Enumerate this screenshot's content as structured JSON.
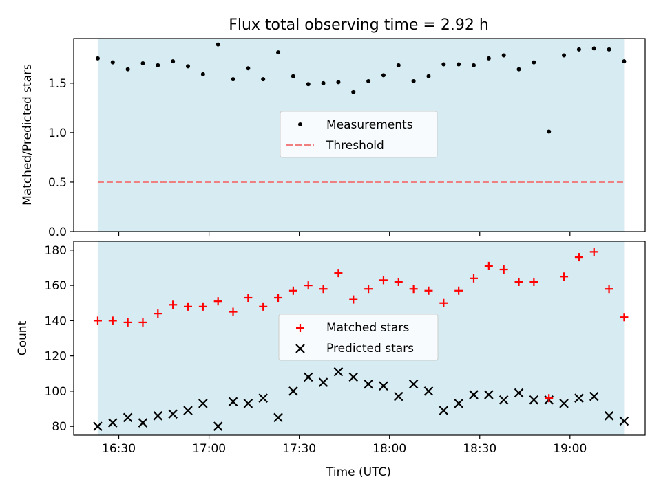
{
  "title": "Flux total observing time = 2.92 h",
  "colors": {
    "span": "#add8e6",
    "threshold": "#f08080",
    "measurements": "#000000",
    "matched": "#ff0000",
    "predicted": "#000000"
  },
  "chart_data": [
    {
      "type": "scatter",
      "panel": "top",
      "ylabel": "Matched/Predicted stars",
      "ylim": [
        0,
        1.95
      ],
      "yticks": [
        0.0,
        0.5,
        1.0,
        1.5
      ],
      "ytick_labels": [
        "0.0",
        "0.5",
        "1.0",
        "1.5"
      ],
      "observing_span": [
        "16:23",
        "19:18"
      ],
      "legend": {
        "position": "center",
        "entries": [
          "Measurements",
          "Threshold"
        ]
      },
      "threshold": 0.5,
      "series": [
        {
          "name": "Measurements",
          "marker": "dot",
          "x": [
            "16:23",
            "16:28",
            "16:33",
            "16:38",
            "16:43",
            "16:48",
            "16:53",
            "16:58",
            "17:03",
            "17:08",
            "17:13",
            "17:18",
            "17:23",
            "17:28",
            "17:33",
            "17:38",
            "17:43",
            "17:48",
            "17:53",
            "17:58",
            "18:03",
            "18:08",
            "18:13",
            "18:18",
            "18:23",
            "18:28",
            "18:33",
            "18:38",
            "18:43",
            "18:48",
            "18:53",
            "18:58",
            "19:03",
            "19:08",
            "19:13",
            "19:18"
          ],
          "y": [
            1.75,
            1.71,
            1.64,
            1.7,
            1.68,
            1.72,
            1.67,
            1.59,
            1.89,
            1.54,
            1.65,
            1.54,
            1.81,
            1.57,
            1.49,
            1.5,
            1.51,
            1.41,
            1.52,
            1.58,
            1.68,
            1.52,
            1.57,
            1.69,
            1.69,
            1.68,
            1.75,
            1.78,
            1.64,
            1.71,
            1.01,
            1.78,
            1.84,
            1.85,
            1.84,
            1.72
          ]
        }
      ]
    },
    {
      "type": "scatter",
      "panel": "bottom",
      "xlabel": "Time (UTC)",
      "ylabel": "Count",
      "xlim": [
        "16:15",
        "19:25"
      ],
      "xticks": [
        "16:30",
        "17:00",
        "17:30",
        "18:00",
        "18:30",
        "19:00"
      ],
      "ylim": [
        75,
        185
      ],
      "yticks": [
        80,
        100,
        120,
        140,
        160,
        180
      ],
      "ytick_labels": [
        "80",
        "100",
        "120",
        "140",
        "160",
        "180"
      ],
      "legend": {
        "position": "center",
        "entries": [
          "Matched stars",
          "Predicted stars"
        ]
      },
      "series": [
        {
          "name": "Matched stars",
          "marker": "plus",
          "x": [
            "16:23",
            "16:28",
            "16:33",
            "16:38",
            "16:43",
            "16:48",
            "16:53",
            "16:58",
            "17:03",
            "17:08",
            "17:13",
            "17:18",
            "17:23",
            "17:28",
            "17:33",
            "17:38",
            "17:43",
            "17:48",
            "17:53",
            "17:58",
            "18:03",
            "18:08",
            "18:13",
            "18:18",
            "18:23",
            "18:28",
            "18:33",
            "18:38",
            "18:43",
            "18:48",
            "18:53",
            "18:58",
            "19:03",
            "19:08",
            "19:13",
            "19:18"
          ],
          "y": [
            140,
            140,
            139,
            139,
            144,
            149,
            148,
            148,
            151,
            145,
            153,
            148,
            153,
            157,
            160,
            158,
            167,
            152,
            158,
            163,
            162,
            158,
            157,
            150,
            157,
            164,
            171,
            169,
            162,
            162,
            96,
            165,
            176,
            179,
            158,
            142
          ]
        },
        {
          "name": "Predicted stars",
          "marker": "x",
          "x": [
            "16:23",
            "16:28",
            "16:33",
            "16:38",
            "16:43",
            "16:48",
            "16:53",
            "16:58",
            "17:03",
            "17:08",
            "17:13",
            "17:18",
            "17:23",
            "17:28",
            "17:33",
            "17:38",
            "17:43",
            "17:48",
            "17:53",
            "17:58",
            "18:03",
            "18:08",
            "18:13",
            "18:18",
            "18:23",
            "18:28",
            "18:33",
            "18:38",
            "18:43",
            "18:48",
            "18:53",
            "18:58",
            "19:03",
            "19:08",
            "19:13",
            "19:18"
          ],
          "y": [
            80,
            82,
            85,
            82,
            86,
            87,
            89,
            93,
            80,
            94,
            93,
            96,
            85,
            100,
            108,
            105,
            111,
            108,
            104,
            103,
            97,
            104,
            100,
            89,
            93,
            98,
            98,
            95,
            99,
            95,
            95,
            93,
            96,
            97,
            86,
            83
          ]
        }
      ]
    }
  ]
}
